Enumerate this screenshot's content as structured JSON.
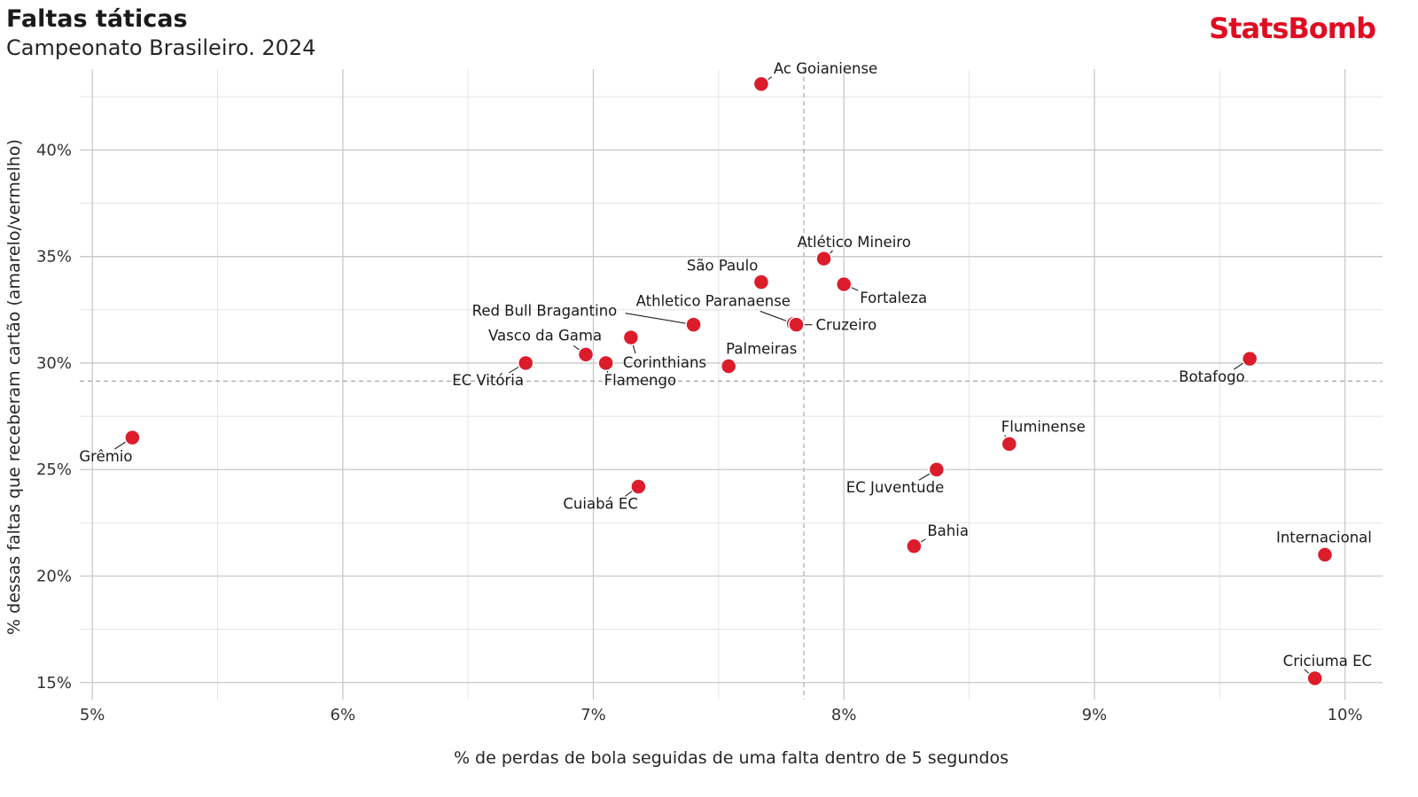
{
  "header": {
    "title": "Faltas táticas",
    "subtitle": "Campeonato Brasileiro. 2024",
    "brand": "StatsBomb",
    "brand_color": "#e00d22"
  },
  "chart_data": {
    "type": "scatter",
    "title": "Faltas táticas",
    "subtitle": "Campeonato Brasileiro. 2024",
    "xlabel": "% de perdas de bola seguidas de uma falta dentro de 5 segundos",
    "ylabel": "% dessas faltas que receberam cartão (amarelo/vermelho)",
    "xlim": [
      4.95,
      10.15
    ],
    "ylim": [
      14.2,
      43.8
    ],
    "x_major_ticks": [
      5,
      6,
      7,
      8,
      9,
      10
    ],
    "x_tick_labels": [
      "5%",
      "6%",
      "7%",
      "8%",
      "9%",
      "10%"
    ],
    "y_major_ticks": [
      15,
      20,
      25,
      30,
      35,
      40
    ],
    "y_tick_labels": [
      "15%",
      "20%",
      "25%",
      "30%",
      "35%",
      "40%"
    ],
    "x_minor_ticks": [
      5.5,
      6.5,
      7.5,
      8.5,
      9.5
    ],
    "y_minor_ticks": [
      17.5,
      22.5,
      27.5,
      32.5,
      37.5,
      42.5
    ],
    "reference_lines": {
      "x": 7.84,
      "y": 29.15
    },
    "grid": true,
    "point_color": "#dc1c2b",
    "points": [
      {
        "name": "Ac Goianiense",
        "x": 7.67,
        "y": 43.1
      },
      {
        "name": "Atlético Mineiro",
        "x": 7.92,
        "y": 34.9
      },
      {
        "name": "São Paulo",
        "x": 7.67,
        "y": 33.8
      },
      {
        "name": "Fortaleza",
        "x": 8.0,
        "y": 33.7
      },
      {
        "name": "Red Bull Bragantino",
        "x": 7.4,
        "y": 31.8
      },
      {
        "name": "Athletico Paranaense",
        "x": 7.8,
        "y": 31.85
      },
      {
        "name": "Cruzeiro",
        "x": 7.81,
        "y": 31.8
      },
      {
        "name": "Corinthians",
        "x": 7.15,
        "y": 31.2
      },
      {
        "name": "Vasco da Gama",
        "x": 6.97,
        "y": 30.4
      },
      {
        "name": "Palmeiras",
        "x": 7.54,
        "y": 29.85
      },
      {
        "name": "Flamengo",
        "x": 7.05,
        "y": 30.0
      },
      {
        "name": "EC Vitória",
        "x": 6.73,
        "y": 30.0
      },
      {
        "name": "Botafogo",
        "x": 9.62,
        "y": 30.2
      },
      {
        "name": "Grêmio",
        "x": 5.16,
        "y": 26.5
      },
      {
        "name": "Fluminense",
        "x": 8.66,
        "y": 26.2
      },
      {
        "name": "EC Juventude",
        "x": 8.37,
        "y": 25.0
      },
      {
        "name": "Cuiabá EC",
        "x": 7.18,
        "y": 24.2
      },
      {
        "name": "Bahia",
        "x": 8.28,
        "y": 21.4
      },
      {
        "name": "Internacional",
        "x": 9.92,
        "y": 21.0
      },
      {
        "name": "Criciuma EC",
        "x": 9.88,
        "y": 15.2
      }
    ]
  }
}
